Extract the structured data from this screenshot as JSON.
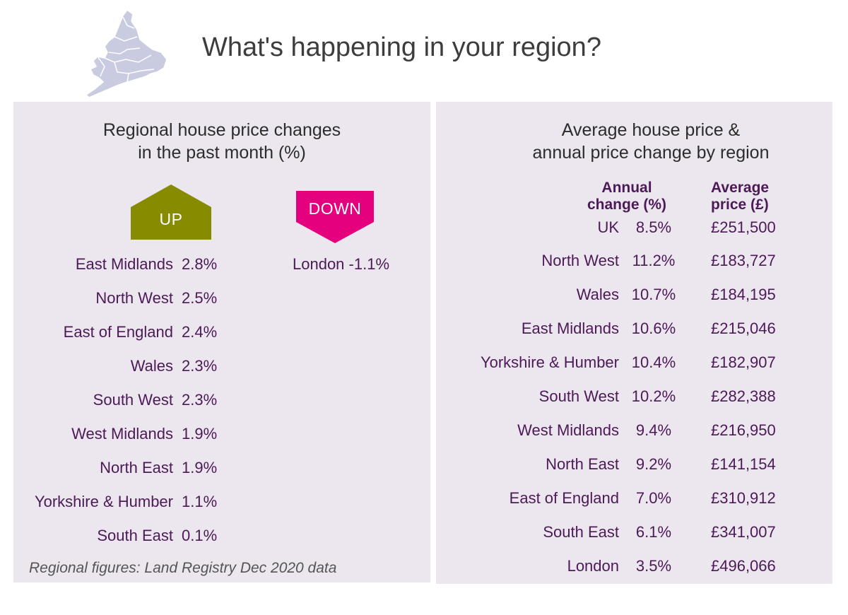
{
  "header": {
    "title": "What's happening in your region?",
    "map_icon": "uk-map-icon"
  },
  "colors": {
    "panel_bg": "#ece6ee",
    "up_badge": "#878b00",
    "down_badge": "#e5007e",
    "text_purple": "#4b1a57",
    "map_fill": "#c9cce0"
  },
  "monthly": {
    "title_line1": "Regional house price changes",
    "title_line2": "in the past month (%)",
    "up_label": "UP",
    "down_label": "DOWN",
    "up": [
      {
        "region": "East Midlands",
        "change": "2.8%"
      },
      {
        "region": "North West",
        "change": "2.5%"
      },
      {
        "region": "East of England",
        "change": "2.4%"
      },
      {
        "region": "Wales",
        "change": "2.3%"
      },
      {
        "region": "South West",
        "change": "2.3%"
      },
      {
        "region": "West Midlands",
        "change": "1.9%"
      },
      {
        "region": "North East",
        "change": "1.9%"
      },
      {
        "region": "Yorkshire & Humber",
        "change": "1.1%"
      },
      {
        "region": "South East",
        "change": "0.1%"
      }
    ],
    "down": [
      {
        "region": "London",
        "change": "-1.1%"
      }
    ],
    "source": "Regional figures: Land Registry Dec 2020 data"
  },
  "annual": {
    "title_line1": "Average house price &",
    "title_line2": "annual price change by region",
    "col_change_line1": "Annual",
    "col_change_line2": "change (%)",
    "col_price_line1": "Average",
    "col_price_line2": "price (£)",
    "rows": [
      {
        "region": "UK",
        "change": "8.5%",
        "price": "£251,500"
      },
      {
        "region": "North West",
        "change": "11.2%",
        "price": "£183,727"
      },
      {
        "region": "Wales",
        "change": "10.7%",
        "price": "£184,195"
      },
      {
        "region": "East Midlands",
        "change": "10.6%",
        "price": "£215,046"
      },
      {
        "region": "Yorkshire & Humber",
        "change": "10.4%",
        "price": "£182,907"
      },
      {
        "region": "South West",
        "change": "10.2%",
        "price": "£282,388"
      },
      {
        "region": "West Midlands",
        "change": "9.4%",
        "price": "£216,950"
      },
      {
        "region": "North East",
        "change": "9.2%",
        "price": "£141,154"
      },
      {
        "region": "East of England",
        "change": "7.0%",
        "price": "£310,912"
      },
      {
        "region": "South East",
        "change": "6.1%",
        "price": "£341,007"
      },
      {
        "region": "London",
        "change": "3.5%",
        "price": "£496,066"
      }
    ]
  }
}
